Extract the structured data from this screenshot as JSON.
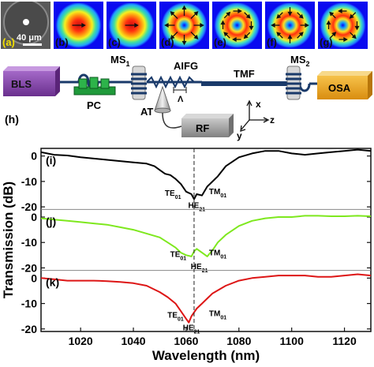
{
  "mode_panels": [
    {
      "letter": "(a)",
      "kind": "fiber"
    },
    {
      "letter": "(b)",
      "kind": "field",
      "pattern": "gaussian",
      "arrows": "horizontal"
    },
    {
      "letter": "(c)",
      "kind": "field",
      "pattern": "gaussian",
      "arrows": "horizontal"
    },
    {
      "letter": "(d)",
      "kind": "field",
      "pattern": "ring",
      "arrows": "radial"
    },
    {
      "letter": "(e)",
      "kind": "field",
      "pattern": "ring",
      "arrows": "azimuthal"
    },
    {
      "letter": "(f)",
      "kind": "field",
      "pattern": "ring",
      "arrows": "hybrid-a"
    },
    {
      "letter": "(g)",
      "kind": "field",
      "pattern": "ring",
      "arrows": "hybrid-b"
    }
  ],
  "scale_bar_label": "40 μm",
  "setup": {
    "panel_letter": "(h)",
    "bls": "BLS",
    "pc": "PC",
    "ms1": "MS",
    "ms1_sub": "1",
    "aifg": "AIFG",
    "lambda": "Λ",
    "tmf": "TMF",
    "ms2": "MS",
    "ms2_sub": "2",
    "osa": "OSA",
    "at": "AT",
    "rf": "RF",
    "axis_x": "x",
    "axis_y": "y",
    "axis_z": "z",
    "colors": {
      "bls": "#7b3fa0",
      "pc": "#1f9a3a",
      "osa": "#e8a21a",
      "rf": "#9a9a9a"
    }
  },
  "chart_data": {
    "type": "line",
    "xlabel": "Wavelength (nm)",
    "ylabel": "Transmission (dB)",
    "xlim": [
      1005,
      1130
    ],
    "xticks": [
      1020,
      1040,
      1060,
      1080,
      1100,
      1120
    ],
    "ylim": [
      -21,
      3
    ],
    "yticks": [
      0,
      -10,
      -20
    ],
    "vline": 1063,
    "panels": [
      {
        "letter": "(i)",
        "color": "#000000",
        "x": [
          1005,
          1010,
          1015,
          1020,
          1025,
          1030,
          1035,
          1040,
          1045,
          1048,
          1050,
          1052,
          1054,
          1056,
          1058,
          1060,
          1062,
          1063,
          1064,
          1066,
          1068,
          1070,
          1072,
          1075,
          1080,
          1085,
          1090,
          1095,
          1100,
          1105,
          1110,
          1115,
          1120,
          1125,
          1130
        ],
        "y": [
          1.5,
          0.5,
          0.2,
          -0.5,
          -1,
          -1.5,
          -2,
          -2.5,
          -3,
          -4,
          -5.5,
          -7,
          -7.5,
          -9,
          -11,
          -14,
          -15,
          -17,
          -15,
          -15.5,
          -12,
          -10,
          -8,
          -4,
          -0.5,
          1,
          2,
          2,
          1,
          0.5,
          1,
          1.5,
          2,
          2.5,
          2
        ],
        "annotations": [
          {
            "main": "TE",
            "sub": "01",
            "x": 1055
          },
          {
            "main": "HE",
            "sub": "21",
            "x": 1064
          },
          {
            "main": "TM",
            "sub": "01",
            "x": 1072
          }
        ]
      },
      {
        "letter": "(j)",
        "color": "#7ee81e",
        "x": [
          1005,
          1010,
          1015,
          1020,
          1025,
          1030,
          1035,
          1040,
          1045,
          1050,
          1053,
          1056,
          1058,
          1060,
          1062,
          1063,
          1064,
          1066,
          1068,
          1070,
          1072,
          1075,
          1080,
          1085,
          1090,
          1095,
          1100,
          1105,
          1110,
          1115,
          1120,
          1125,
          1130
        ],
        "y": [
          -0.5,
          -1,
          -1.5,
          -2,
          -2.5,
          -3,
          -4,
          -5,
          -6.5,
          -8,
          -10,
          -12,
          -14,
          -15,
          -15.5,
          -13.5,
          -12.5,
          -14,
          -15.5,
          -13,
          -10,
          -7,
          -3.5,
          -1.5,
          -0.5,
          0,
          0,
          0.5,
          0.5,
          0.3,
          0.3,
          0.5,
          0.3
        ],
        "annotations": [
          {
            "main": "TE",
            "sub": "01",
            "x": 1057
          },
          {
            "main": "HE",
            "sub": "21",
            "x": 1065
          },
          {
            "main": "TM",
            "sub": "01",
            "x": 1072
          }
        ]
      },
      {
        "letter": "(k)",
        "color": "#dd1515",
        "x": [
          1005,
          1010,
          1015,
          1020,
          1025,
          1030,
          1035,
          1040,
          1045,
          1050,
          1053,
          1056,
          1058,
          1060,
          1061,
          1062,
          1064,
          1066,
          1068,
          1070,
          1075,
          1080,
          1085,
          1090,
          1095,
          1100,
          1105,
          1110,
          1115,
          1120,
          1125,
          1130
        ],
        "y": [
          0,
          -0.5,
          -1,
          -1,
          -1,
          -1.2,
          -1.5,
          -2,
          -3,
          -5.5,
          -7.5,
          -10,
          -13,
          -16,
          -17.5,
          -15,
          -12,
          -10,
          -8,
          -6,
          -3,
          -1,
          0,
          0.5,
          1,
          1,
          1,
          0.5,
          0.5,
          1,
          1.5,
          1
        ],
        "annotations": [
          {
            "main": "TE",
            "sub": "01",
            "x": 1056
          },
          {
            "main": "HE",
            "sub": "21",
            "x": 1062
          },
          {
            "main": "TM",
            "sub": "01",
            "x": 1072
          }
        ]
      }
    ]
  }
}
